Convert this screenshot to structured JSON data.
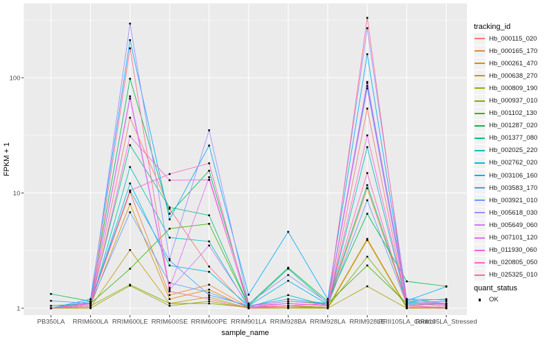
{
  "chart_data": {
    "type": "line",
    "title": "",
    "xlabel": "sample_name",
    "ylabel": "FPKM + 1",
    "x_categories": [
      "PB350LA",
      "RRIM600LA",
      "RRIM600LE",
      "RRIM600SE",
      "RRIM600PE",
      "RRIM901LA",
      "RRIM928BA",
      "RRIM928LA",
      "RRIM928LE",
      "RRII105LA_Control",
      "RRII105LA_Stressed"
    ],
    "y_scale": "log10",
    "y_ticks": [
      1,
      10,
      100
    ],
    "y_tick_labels": [
      "1",
      "10",
      "100"
    ],
    "y_minor_ticks": [
      3.162,
      31.623,
      316.228
    ],
    "ylim": [
      0.87,
      440
    ],
    "grid": true,
    "legend_position": "right",
    "panel_background": "#EBEBEB",
    "grid_color": "#FFFFFF",
    "point_color": "#000000",
    "series": [
      {
        "name": "Hb_000115_020",
        "color": "#F8766D",
        "values": [
          1.0,
          1.05,
          45,
          7.3,
          2.3,
          1.0,
          1.05,
          1.0,
          54,
          1.05,
          1.0
        ]
      },
      {
        "name": "Hb_000165_170",
        "color": "#EA8331",
        "values": [
          1.0,
          1.1,
          10.2,
          1.3,
          1.6,
          1.02,
          1.1,
          1.05,
          11,
          1.1,
          1.05
        ]
      },
      {
        "name": "Hb_000261_470",
        "color": "#D89000",
        "values": [
          1.0,
          1.05,
          8.0,
          1.2,
          1.45,
          1.0,
          1.05,
          1.02,
          4.0,
          1.02,
          1.0
        ]
      },
      {
        "name": "Hb_000638_270",
        "color": "#C09B00",
        "values": [
          1.0,
          1.02,
          3.2,
          1.1,
          1.25,
          1.0,
          1.02,
          1.0,
          3.9,
          1.0,
          1.02
        ]
      },
      {
        "name": "Hb_000809_190",
        "color": "#A3A500",
        "values": [
          1.0,
          1.0,
          1.57,
          1.05,
          1.15,
          1.0,
          1.0,
          1.0,
          1.55,
          1.0,
          1.0
        ]
      },
      {
        "name": "Hb_000937_010",
        "color": "#7CAE00",
        "values": [
          1.0,
          1.05,
          1.6,
          1.1,
          1.1,
          1.02,
          1.05,
          1.02,
          2.8,
          1.05,
          1.1
        ]
      },
      {
        "name": "Hb_001102_130",
        "color": "#39B600",
        "values": [
          1.05,
          1.1,
          2.2,
          4.9,
          5.4,
          1.05,
          1.15,
          1.1,
          2.35,
          1.1,
          1.05
        ]
      },
      {
        "name": "Hb_001287_020",
        "color": "#00BB4E",
        "values": [
          1.33,
          1.15,
          98,
          6.6,
          15.6,
          1.08,
          2.25,
          1.15,
          6.6,
          1.71,
          1.55
        ]
      },
      {
        "name": "Hb_001377_080",
        "color": "#00C087",
        "values": [
          1.0,
          1.1,
          26,
          7.5,
          6.4,
          1.05,
          2.2,
          1.1,
          11.7,
          1.15,
          1.2
        ]
      },
      {
        "name": "Hb_002025_220",
        "color": "#00C0B8",
        "values": [
          1.0,
          1.05,
          16.8,
          4.1,
          3.8,
          1.02,
          1.3,
          1.05,
          25,
          1.1,
          1.1
        ]
      },
      {
        "name": "Hb_002762_020",
        "color": "#00BAE0",
        "values": [
          1.0,
          1.1,
          12.1,
          2.35,
          2.07,
          1.05,
          1.73,
          1.08,
          85,
          1.12,
          1.15
        ]
      },
      {
        "name": "Hb_003106_160",
        "color": "#00ACFC",
        "values": [
          1.0,
          1.2,
          212,
          5.9,
          25.8,
          1.31,
          4.6,
          1.2,
          160,
          1.16,
          1.54
        ]
      },
      {
        "name": "Hb_003583_170",
        "color": "#35A2FF",
        "values": [
          1.0,
          1.15,
          10.5,
          2.6,
          1.3,
          1.05,
          1.2,
          1.1,
          90,
          1.2,
          1.18
        ]
      },
      {
        "name": "Hb_003921_010",
        "color": "#619CFF",
        "values": [
          1.16,
          1.1,
          6.8,
          1.66,
          1.37,
          1.02,
          1.1,
          1.05,
          8.65,
          1.08,
          1.1
        ]
      },
      {
        "name": "Hb_005618_030",
        "color": "#9590FF",
        "values": [
          1.0,
          1.12,
          295,
          2.67,
          35,
          1.1,
          1.94,
          1.12,
          269,
          1.2,
          1.1
        ]
      },
      {
        "name": "Hb_005649_060",
        "color": "#C77CFF",
        "values": [
          1.0,
          1.08,
          66,
          1.45,
          3.5,
          1.05,
          1.15,
          1.08,
          81,
          1.1,
          1.05
        ]
      },
      {
        "name": "Hb_007101_120",
        "color": "#E76BF3",
        "values": [
          1.0,
          1.1,
          69,
          1.5,
          13.7,
          1.02,
          1.1,
          1.06,
          92,
          1.15,
          1.1
        ]
      },
      {
        "name": "Hb_011930_060",
        "color": "#FA62DB",
        "values": [
          1.0,
          1.05,
          31,
          12.9,
          13.0,
          1.05,
          1.1,
          1.05,
          31.6,
          1.1,
          1.08
        ]
      },
      {
        "name": "Hb_020805_050",
        "color": "#FF62BC",
        "values": [
          1.0,
          1.1,
          10.5,
          14.6,
          18.1,
          1.02,
          1.05,
          1.1,
          14.9,
          1.05,
          1.02
        ]
      },
      {
        "name": "Hb_025325_010",
        "color": "#FF6A98",
        "values": [
          1.0,
          1.05,
          180,
          1.4,
          1.2,
          1.0,
          1.02,
          1.02,
          331,
          1.02,
          1.0
        ]
      }
    ]
  },
  "legend": {
    "title": "tracking_id"
  },
  "quant_legend": {
    "title": "quant_status",
    "items": [
      {
        "label": "OK",
        "symbol": "black-square"
      }
    ]
  },
  "text_colors": {
    "tick": "#4D4D4D",
    "title": "#000000"
  }
}
